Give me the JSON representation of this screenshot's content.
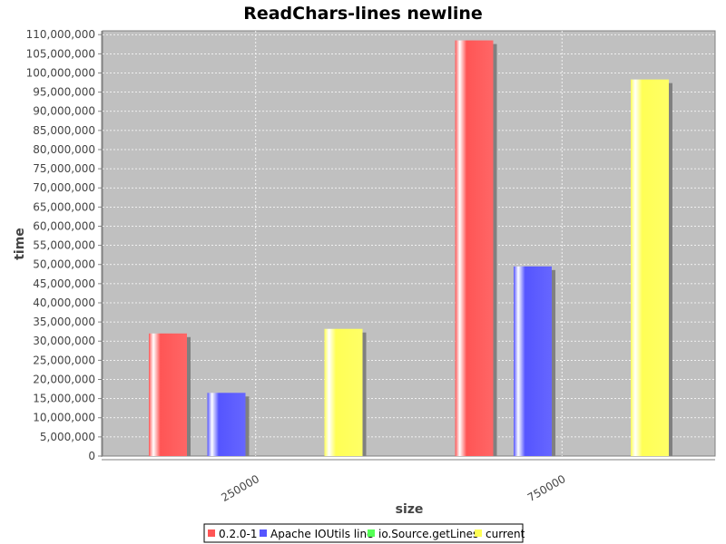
{
  "chart_data": {
    "type": "bar",
    "title": "ReadChars-lines newline",
    "xlabel": "size",
    "ylabel": "time",
    "categories": [
      "250000",
      "750000"
    ],
    "series": [
      {
        "name": "0.2.0-1",
        "color": "#ff5555",
        "values": [
          32000000,
          108500000
        ]
      },
      {
        "name": "Apache IOUtils line",
        "color": "#5555ff",
        "values": [
          16500000,
          49500000
        ]
      },
      {
        "name": "io.Source.getLines",
        "color": "#55ff55",
        "values": [
          0,
          0
        ]
      },
      {
        "name": "current",
        "color": "#ffff55",
        "values": [
          33200000,
          98300000
        ]
      }
    ],
    "ylim": [
      0,
      111000000
    ],
    "yticks": [
      "0",
      "5,000,000",
      "10,000,000",
      "15,000,000",
      "20,000,000",
      "25,000,000",
      "30,000,000",
      "35,000,000",
      "40,000,000",
      "45,000,000",
      "50,000,000",
      "55,000,000",
      "60,000,000",
      "65,000,000",
      "70,000,000",
      "75,000,000",
      "80,000,000",
      "85,000,000",
      "90,000,000",
      "95,000,000",
      "100,000,000",
      "105,000,000",
      "110,000,000"
    ],
    "grid": true,
    "legend_position": "bottom"
  }
}
